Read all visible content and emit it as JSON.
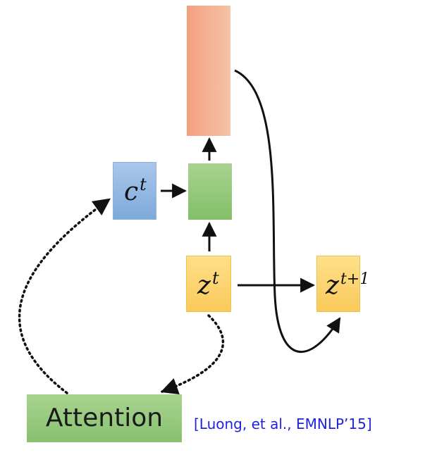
{
  "diagram": {
    "nodes": {
      "context": {
        "symbol": "c",
        "superscript": "t",
        "color": "#8fb4e3"
      },
      "hidden": {
        "color": "#93c97a"
      },
      "output": {
        "color": "#f4ad8e"
      },
      "state": {
        "symbol": "z",
        "superscript": "t",
        "color": "#fcd370"
      },
      "next_state": {
        "symbol": "z",
        "superscript": "t+1",
        "color": "#fcd370"
      },
      "attention": {
        "label": "Attention",
        "color": "#93c97a"
      }
    },
    "citation": "[Luong, et al., EMNLP’15]"
  }
}
